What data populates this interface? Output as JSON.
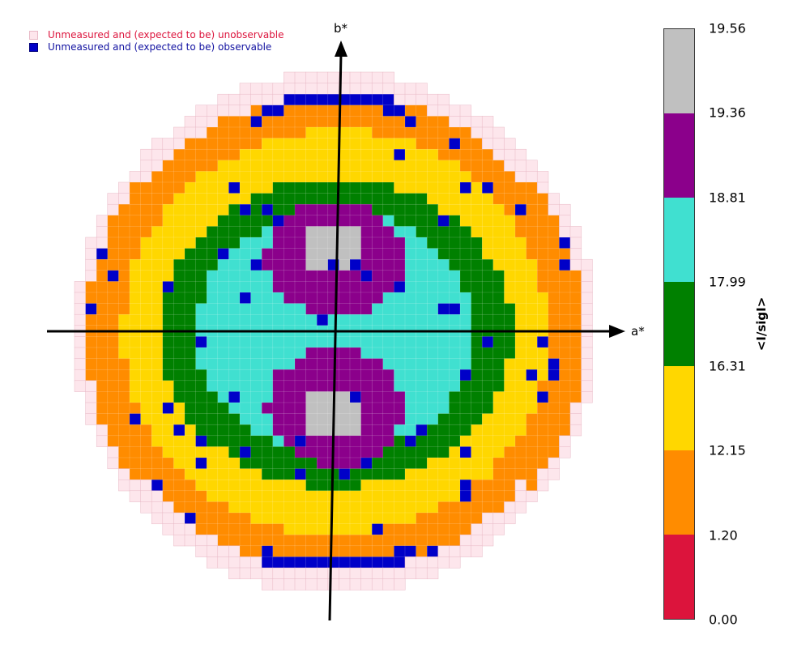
{
  "legend": {
    "unobservable": {
      "label": "Unmeasured and (expected to be) unobservable",
      "color": "#fde6ec",
      "text_color": "#dc143c"
    },
    "observable": {
      "label": "Unmeasured and (expected to be) observable",
      "color": "#0000c8",
      "text_color": "#1010a0"
    }
  },
  "axes": {
    "a_label": "a*",
    "b_label": "b*"
  },
  "colorbar": {
    "title": "<I/sigI>",
    "ticks": [
      "0.00",
      "1.20",
      "12.15",
      "16.31",
      "17.99",
      "18.81",
      "19.36",
      "19.56"
    ],
    "colors": [
      "#dc143c",
      "#ff8c00",
      "#ffd700",
      "#008000",
      "#40e0d0",
      "#8b008b",
      "#c0c0c0"
    ]
  },
  "chart_data": {
    "type": "heatmap",
    "title": "",
    "xlabel": "a*",
    "ylabel": "b*",
    "legend_placement": "top-left",
    "bins": [
      "0.00-1.20",
      "1.20-12.15",
      "12.15-16.31",
      "16.31-17.99",
      "17.99-18.81",
      "18.81-19.36",
      "19.36-19.56"
    ],
    "bin_colors": [
      "#dc143c",
      "#ff8c00",
      "#ffd700",
      "#008000",
      "#40e0d0",
      "#8b008b",
      "#c0c0c0"
    ],
    "pattern": "concentric rings: gray and purple lobes near center along b*, then turquoise, green, yellow, orange outward; outer rim of unmeasured reflections"
  }
}
